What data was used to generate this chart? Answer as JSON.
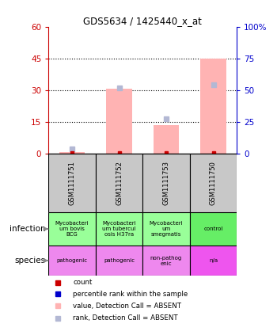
{
  "title": "GDS5634 / 1425440_x_at",
  "samples": [
    "GSM1111751",
    "GSM1111752",
    "GSM1111753",
    "GSM1111750"
  ],
  "bar_values": [
    0.5,
    30.5,
    13.5,
    45.0
  ],
  "bar_color": "#ffb3b3",
  "count_values": [
    0.3,
    0.3,
    0.3,
    0.3
  ],
  "count_color": "#cc0000",
  "rank_values_pct": [
    3.3,
    51.7,
    27.5,
    54.2
  ],
  "rank_color_absent": "#b3b8d4",
  "ylim_left": [
    0,
    60
  ],
  "ylim_right": [
    0,
    100
  ],
  "yticks_left": [
    0,
    15,
    30,
    45,
    60
  ],
  "yticks_right": [
    0,
    25,
    50,
    75,
    100
  ],
  "ytick_labels_right": [
    "0",
    "25",
    "50",
    "75",
    "100%"
  ],
  "infection_labels": [
    "Mycobacteri\num bovis\nBCG",
    "Mycobacteri\num tubercul\nosis H37ra",
    "Mycobacteri\num\nsmegmatis",
    "control"
  ],
  "infection_colors": [
    "#99ff99",
    "#99ff99",
    "#99ff99",
    "#66ee66"
  ],
  "species_labels": [
    "pathogenic",
    "pathogenic",
    "non-pathog\nenic",
    "n/a"
  ],
  "species_colors": [
    "#ee88ee",
    "#ee88ee",
    "#ee88ee",
    "#ee55ee"
  ],
  "sample_bg_color": "#c8c8c8",
  "left_axis_color": "#cc0000",
  "right_axis_color": "#0000cc",
  "legend_items": [
    {
      "label": "count",
      "color": "#cc0000"
    },
    {
      "label": "percentile rank within the sample",
      "color": "#0000cc"
    },
    {
      "label": "value, Detection Call = ABSENT",
      "color": "#ffb3b3"
    },
    {
      "label": "rank, Detection Call = ABSENT",
      "color": "#b3b8d4"
    }
  ],
  "infection_row_label": "infection",
  "species_row_label": "species",
  "dotted_yticks": [
    15,
    30,
    45
  ]
}
